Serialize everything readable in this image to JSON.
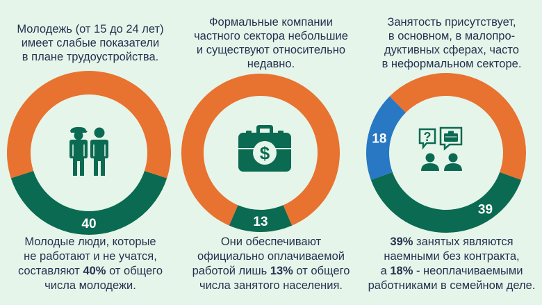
{
  "colors": {
    "background": "#e6f5ea",
    "orange": "#e8722f",
    "green": "#0b6a52",
    "blue": "#2878c3",
    "text": "#23334f",
    "label": "#ffffff"
  },
  "panels": [
    {
      "top_text": "Молодежь (от 15 до 24 лет)\nимеет слабые показатели\nв плане трудоустройства.",
      "bottom_parts": [
        {
          "t": "Молодые люди, которые\nне работают и не учатся,\nсоставляют ",
          "b": false
        },
        {
          "t": "40%",
          "b": true
        },
        {
          "t": " от общего\nчисла молодежи.",
          "b": false
        }
      ],
      "icon": "people-icon"
    },
    {
      "top_text": "Формальные компании\nчастного сектора небольшие\nи существуют относительно\nнедавно.",
      "bottom_parts": [
        {
          "t": "Они обеспечивают\nофициально оплачиваемой\nработой лишь ",
          "b": false
        },
        {
          "t": "13%",
          "b": true
        },
        {
          "t": " от общего\nчисла занятого населения.",
          "b": false
        }
      ],
      "icon": "briefcase-dollar-icon"
    },
    {
      "top_text": "Занятость присутствует,\nв основном, в малопро-\nдуктивных сферах, часто\nв неформальном секторе.",
      "bottom_parts": [
        {
          "t": "39%",
          "b": true
        },
        {
          "t": " занятых являются\nнаемными без контракта,\nа ",
          "b": false
        },
        {
          "t": "18%",
          "b": true
        },
        {
          "t": " - неоплачиваемыми\nработниками в семейном деле.",
          "b": false
        }
      ],
      "icon": "conversation-icon"
    }
  ],
  "chart_data": [
    {
      "type": "pie",
      "labels": [
        "",
        ""
      ],
      "values": [
        40,
        60
      ],
      "value_labels": [
        "40",
        ""
      ],
      "colors": [
        "#0b6a52",
        "#e8722f"
      ]
    },
    {
      "type": "pie",
      "labels": [
        "",
        ""
      ],
      "values": [
        13,
        87
      ],
      "value_labels": [
        "13",
        ""
      ],
      "colors": [
        "#0b6a52",
        "#e8722f"
      ]
    },
    {
      "type": "pie",
      "labels": [
        "",
        "",
        ""
      ],
      "values": [
        39,
        18,
        43
      ],
      "value_labels": [
        "39",
        "18",
        ""
      ],
      "colors": [
        "#0b6a52",
        "#2878c3",
        "#e8722f"
      ]
    }
  ]
}
